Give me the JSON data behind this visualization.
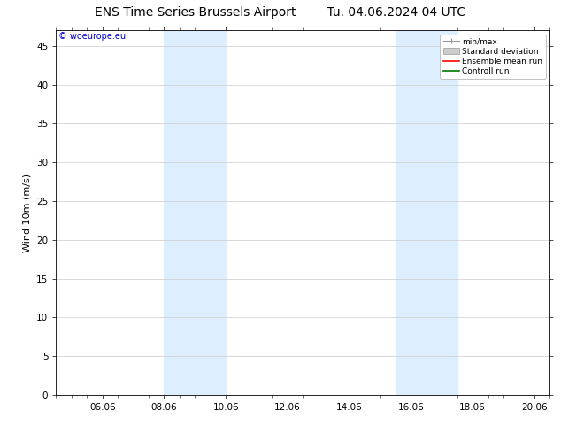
{
  "title_left": "ENS Time Series Brussels Airport",
  "title_right": "Tu. 04.06.2024 04 UTC",
  "ylabel": "Wind 10m (m/s)",
  "watermark": "© woeurope.eu",
  "watermark_color": "#0000cc",
  "xlim_start": 4.5,
  "xlim_end": 20.5,
  "ylim_min": 0,
  "ylim_max": 47,
  "yticks": [
    0,
    5,
    10,
    15,
    20,
    25,
    30,
    35,
    40,
    45
  ],
  "xtick_labels": [
    "06.06",
    "08.06",
    "10.06",
    "12.06",
    "14.06",
    "16.06",
    "18.06",
    "20.06"
  ],
  "xtick_positions": [
    6,
    8,
    10,
    12,
    14,
    16,
    18,
    20
  ],
  "shaded_bands": [
    {
      "x_start": 8.0,
      "x_end": 10.0
    },
    {
      "x_start": 15.5,
      "x_end": 17.5
    }
  ],
  "shade_color": "#ddeeff",
  "background_color": "#ffffff",
  "plot_bg_color": "#ffffff",
  "legend_labels": [
    "min/max",
    "Standard deviation",
    "Ensemble mean run",
    "Controll run"
  ],
  "legend_colors": [
    "#aaaaaa",
    "#cccccc",
    "#ff0000",
    "#008000"
  ],
  "grid_color": "#cccccc",
  "font_size_title": 10,
  "font_size_axis": 8,
  "font_size_ticks": 7.5,
  "font_size_watermark": 7,
  "font_size_legend": 6.5
}
